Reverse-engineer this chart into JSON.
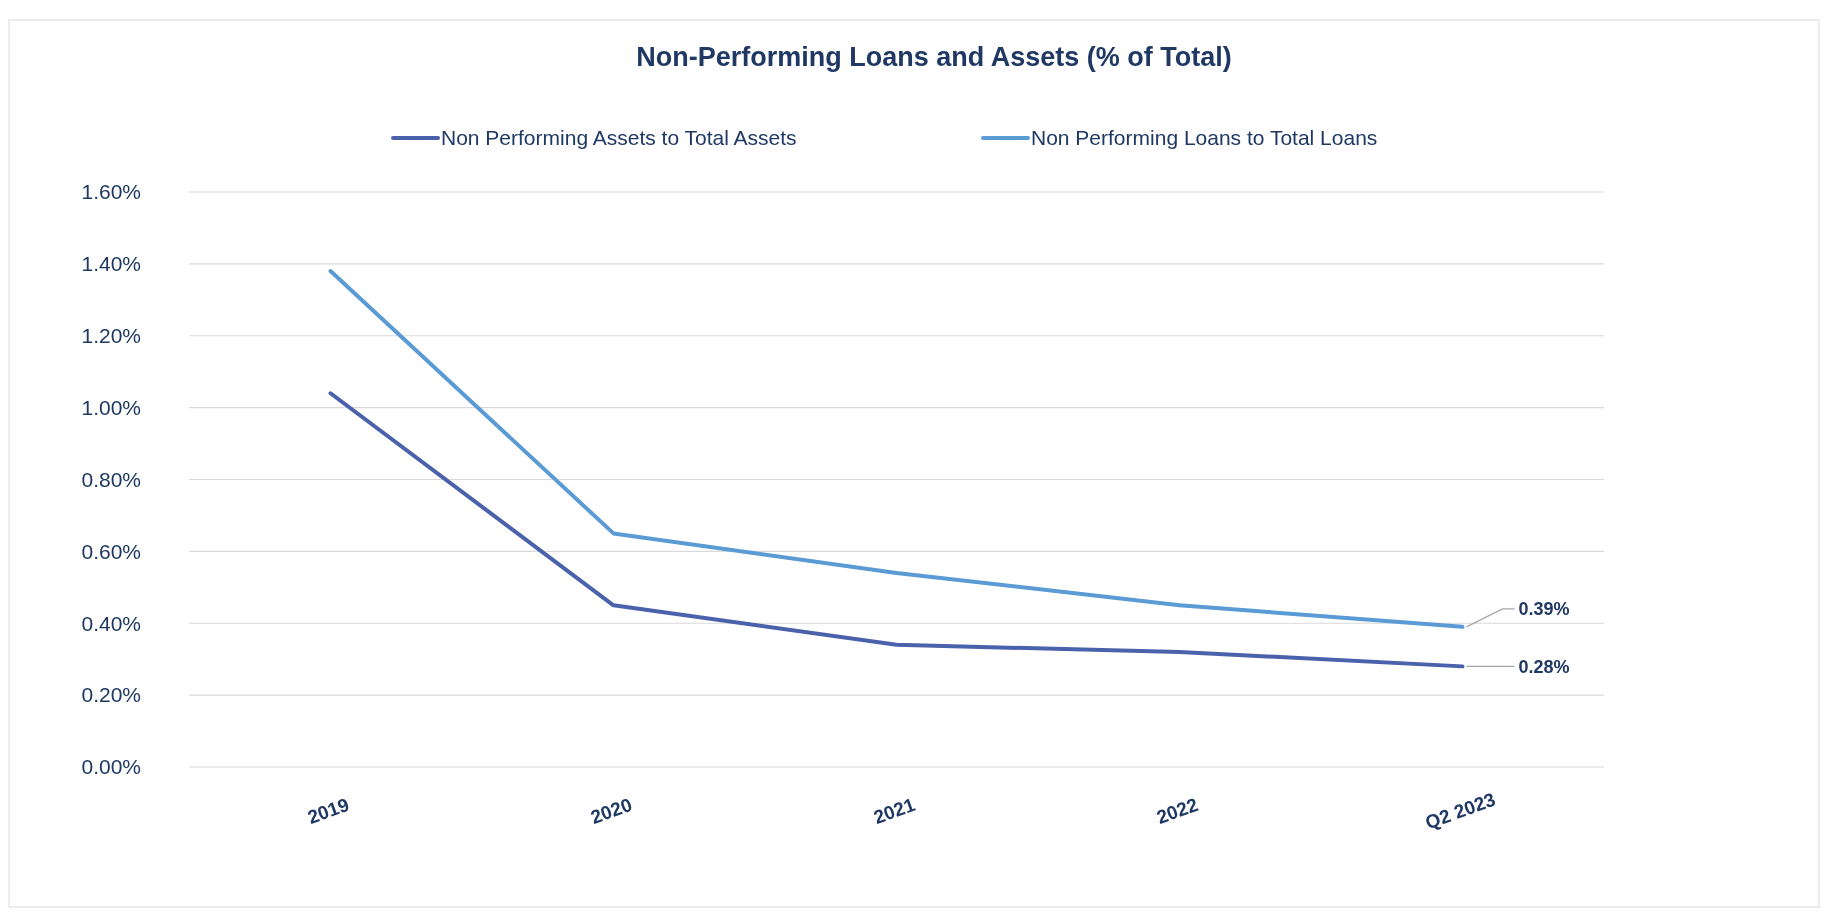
{
  "chart_data": {
    "type": "line",
    "title": "Non-Performing Loans and Assets (% of Total)",
    "categories": [
      "2019",
      "2020",
      "2021",
      "2022",
      "Q2 2023"
    ],
    "series": [
      {
        "name": "Non Performing Assets to Total Assets",
        "color": "#4a62ab",
        "values": [
          1.04,
          0.45,
          0.34,
          0.32,
          0.28
        ],
        "value_labels": [
          null,
          null,
          null,
          null,
          "0.28%"
        ]
      },
      {
        "name": "Non Performing Loans to Total Loans",
        "color": "#5b9bd5",
        "values": [
          1.38,
          0.65,
          0.54,
          0.45,
          0.39
        ],
        "value_labels": [
          null,
          null,
          null,
          null,
          "0.39%"
        ]
      }
    ],
    "ylim": [
      0,
      1.6
    ],
    "yticks": [
      {
        "value": 0,
        "label": "0.00%"
      },
      {
        "value": 0.2,
        "label": "0.20%"
      },
      {
        "value": 0.4,
        "label": "0.40%"
      },
      {
        "value": 0.6,
        "label": "0.60%"
      },
      {
        "value": 0.8,
        "label": "0.80%"
      },
      {
        "value": 1.0,
        "label": "1.00%"
      },
      {
        "value": 1.2,
        "label": "1.20%"
      },
      {
        "value": 1.4,
        "label": "1.40%"
      },
      {
        "value": 1.6,
        "label": "1.60%"
      }
    ],
    "grid": "y",
    "legend": "top",
    "marker": "none",
    "line_style": "solid"
  }
}
